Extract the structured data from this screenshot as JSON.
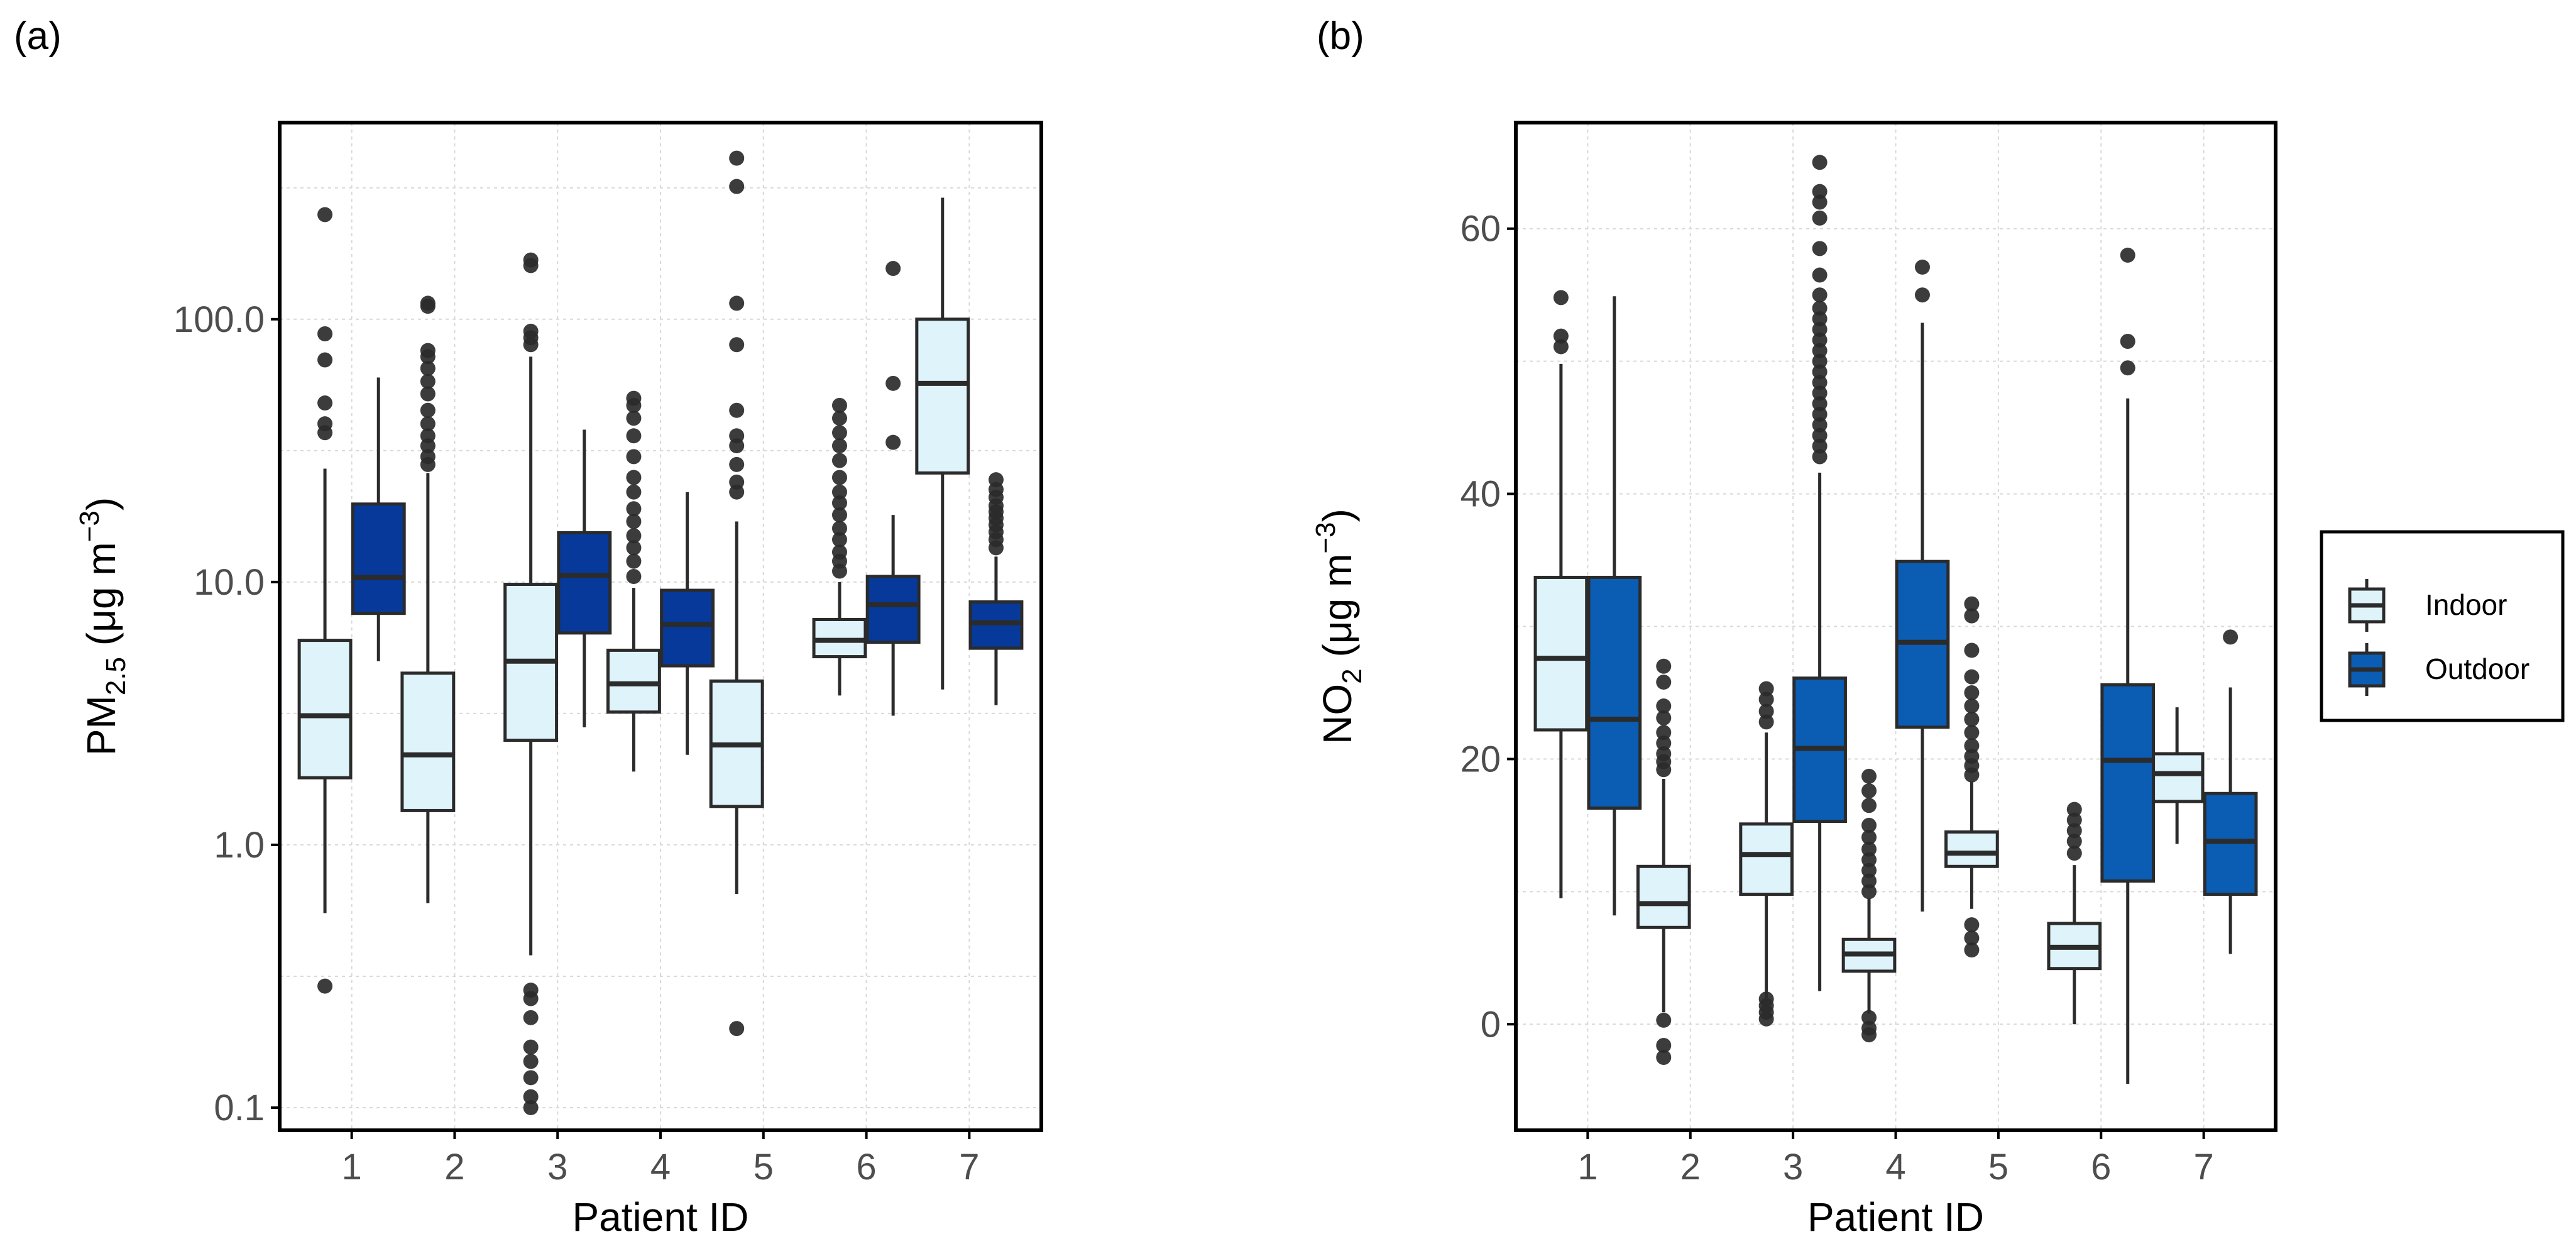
{
  "figure": {
    "panel_a_label": "(a)",
    "panel_b_label": "(b)"
  },
  "legend": {
    "items": [
      {
        "label": "Indoor",
        "color": "#dff3fb"
      },
      {
        "label": "Outdoor",
        "color": "#0b5cb3"
      }
    ]
  },
  "colors": {
    "indoor_fill": "#dff3fb",
    "outdoor_fill_a": "#07399a",
    "outdoor_fill_b": "#0b5cb3",
    "box_stroke": "#2b2b2b",
    "outlier": "#2b2b2b",
    "grid": "#d9d9d9"
  },
  "chart_data": [
    {
      "type": "box",
      "panel": "(a)",
      "xlabel": "Patient ID",
      "ylabel_main": "PM",
      "ylabel_sub": "2.5",
      "ylabel_unit": " (μg m",
      "ylabel_exp": "−3",
      "ylabel_close": ")",
      "yscale": "log",
      "ylim": [
        0.082,
        560
      ],
      "yticks": [
        0.1,
        1.0,
        10.0,
        100.0
      ],
      "ytick_labels": [
        "0.1",
        "1.0",
        "10.0",
        "100.0"
      ],
      "categories": [
        "1",
        "2",
        "3",
        "4",
        "5",
        "6",
        "7"
      ],
      "grid": true,
      "series": [
        {
          "name": "Indoor",
          "boxes": [
            {
              "whisker_low": 0.55,
              "q1": 1.8,
              "median": 3.1,
              "q3": 6.0,
              "whisker_high": 27,
              "outliers": [
                0.29,
                37,
                40,
                48,
                70,
                88,
                250
              ]
            },
            {
              "whisker_low": 0.6,
              "q1": 1.35,
              "median": 2.2,
              "q3": 4.5,
              "whisker_high": 26,
              "outliers": [
                28,
                30,
                33,
                36,
                40,
                45,
                52,
                58,
                65,
                72,
                76,
                112,
                115
              ]
            },
            {
              "whisker_low": 0.38,
              "q1": 2.5,
              "median": 5.0,
              "q3": 9.8,
              "whisker_high": 72,
              "outliers": [
                0.1,
                0.11,
                0.13,
                0.15,
                0.17,
                0.22,
                0.26,
                0.28,
                80,
                85,
                90,
                160,
                168
              ]
            },
            {
              "whisker_low": 1.9,
              "q1": 3.2,
              "median": 4.1,
              "q3": 5.5,
              "whisker_high": 9.5,
              "outliers": [
                10.5,
                12,
                13.5,
                15,
                17,
                19,
                22,
                25,
                30,
                36,
                42,
                47,
                50
              ]
            },
            {
              "whisker_low": 0.65,
              "q1": 1.4,
              "median": 2.4,
              "q3": 4.2,
              "whisker_high": 17,
              "outliers": [
                0.2,
                22,
                24,
                28,
                33,
                36,
                45,
                80,
                115,
                320,
                410
              ]
            },
            {
              "whisker_low": 3.7,
              "q1": 5.2,
              "median": 6.0,
              "q3": 7.2,
              "whisker_high": 10,
              "outliers": [
                11,
                12,
                13,
                14.5,
                16,
                18,
                20,
                22,
                25,
                29,
                33,
                37,
                42,
                47
              ]
            },
            {
              "whisker_low": 3.9,
              "q1": 26,
              "median": 57,
              "q3": 100,
              "whisker_high": 290,
              "outliers": []
            }
          ]
        },
        {
          "name": "Outdoor",
          "boxes": [
            {
              "whisker_low": 5.0,
              "q1": 7.6,
              "median": 10.4,
              "q3": 19.8,
              "whisker_high": 60,
              "outliers": []
            },
            null,
            {
              "whisker_low": 2.8,
              "q1": 6.4,
              "median": 10.6,
              "q3": 15.4,
              "whisker_high": 38,
              "outliers": []
            },
            {
              "whisker_low": 2.2,
              "q1": 4.8,
              "median": 6.9,
              "q3": 9.3,
              "whisker_high": 22,
              "outliers": []
            },
            null,
            {
              "whisker_low": 3.1,
              "q1": 5.9,
              "median": 8.2,
              "q3": 10.5,
              "whisker_high": 18,
              "outliers": [
                34,
                57,
                156
              ]
            },
            {
              "whisker_low": 3.4,
              "q1": 5.6,
              "median": 7.0,
              "q3": 8.4,
              "whisker_high": 12.5,
              "outliers": [
                13.5,
                14.5,
                15.5,
                16.5,
                17.5,
                18.5,
                19.5,
                21,
                22.5,
                24.5
              ]
            }
          ]
        }
      ]
    },
    {
      "type": "box",
      "panel": "(b)",
      "xlabel": "Patient ID",
      "ylabel_main": "NO",
      "ylabel_sub": "2",
      "ylabel_unit": " (μg m",
      "ylabel_exp": "−3",
      "ylabel_close": ")",
      "yscale": "linear",
      "ylim": [
        -8,
        68
      ],
      "yticks": [
        0,
        20,
        40,
        60
      ],
      "ytick_labels": [
        "0",
        "20",
        "40",
        "60"
      ],
      "categories": [
        "1",
        "2",
        "3",
        "4",
        "5",
        "6",
        "7"
      ],
      "grid": true,
      "series": [
        {
          "name": "Indoor",
          "boxes": [
            {
              "whisker_low": 9.5,
              "q1": 22.2,
              "median": 27.6,
              "q3": 33.7,
              "whisker_high": 49.8,
              "outliers": [
                51.1,
                51.9,
                54.8
              ]
            },
            {
              "whisker_low": 0.9,
              "q1": 7.3,
              "median": 9.1,
              "q3": 11.9,
              "whisker_high": 18.5,
              "outliers": [
                -2.5,
                -1.6,
                0.3,
                19.2,
                19.8,
                20.4,
                21.2,
                22.0,
                23.1,
                24.0,
                25.8,
                27.0
              ]
            },
            {
              "whisker_low": 2.0,
              "q1": 9.8,
              "median": 12.8,
              "q3": 15.1,
              "whisker_high": 22.0,
              "outliers": [
                0.4,
                0.9,
                1.4,
                1.9,
                22.8,
                23.6,
                24.5,
                25.3
              ]
            },
            {
              "whisker_low": 0.8,
              "q1": 4.0,
              "median": 5.3,
              "q3": 6.4,
              "whisker_high": 9.5,
              "outliers": [
                -0.8,
                -0.3,
                0.5,
                10.0,
                10.8,
                11.6,
                12.4,
                13.2,
                14.1,
                15.0,
                16.5,
                17.6,
                18.7
              ]
            },
            {
              "whisker_low": 8.7,
              "q1": 11.9,
              "median": 12.9,
              "q3": 14.5,
              "whisker_high": 18.3,
              "outliers": [
                5.6,
                6.5,
                7.5,
                18.8,
                19.5,
                20.2,
                21.0,
                22.0,
                23.0,
                24.0,
                25.0,
                26.2,
                28.2,
                30.8,
                31.7
              ]
            },
            {
              "whisker_low": 0.0,
              "q1": 4.2,
              "median": 5.8,
              "q3": 7.6,
              "whisker_high": 12.0,
              "outliers": [
                12.9,
                13.8,
                14.6,
                15.4,
                16.2
              ]
            },
            {
              "whisker_low": 13.6,
              "q1": 16.8,
              "median": 18.9,
              "q3": 20.4,
              "whisker_high": 23.9,
              "outliers": []
            }
          ]
        },
        {
          "name": "Outdoor",
          "boxes": [
            {
              "whisker_low": 8.2,
              "q1": 16.3,
              "median": 23.0,
              "q3": 33.7,
              "whisker_high": 54.9,
              "outliers": []
            },
            null,
            {
              "whisker_low": 2.5,
              "q1": 15.3,
              "median": 20.8,
              "q3": 26.1,
              "whisker_high": 41.6,
              "outliers": [
                42.8,
                43.6,
                44.4,
                45.2,
                46.0,
                46.8,
                47.6,
                48.4,
                49.2,
                50.0,
                50.8,
                51.6,
                52.4,
                53.2,
                54.0,
                55.0,
                56.5,
                58.5,
                60.8,
                62.0,
                62.8,
                65.0
              ]
            },
            {
              "whisker_low": 8.5,
              "q1": 22.4,
              "median": 28.8,
              "q3": 34.9,
              "whisker_high": 52.9,
              "outliers": [
                55.0,
                57.1
              ]
            },
            null,
            {
              "whisker_low": -4.5,
              "q1": 10.8,
              "median": 19.9,
              "q3": 25.6,
              "whisker_high": 47.2,
              "outliers": [
                49.5,
                51.5,
                58.0
              ]
            },
            {
              "whisker_low": 5.3,
              "q1": 9.8,
              "median": 13.8,
              "q3": 17.4,
              "whisker_high": 25.4,
              "outliers": [
                29.2
              ]
            }
          ]
        }
      ]
    }
  ]
}
